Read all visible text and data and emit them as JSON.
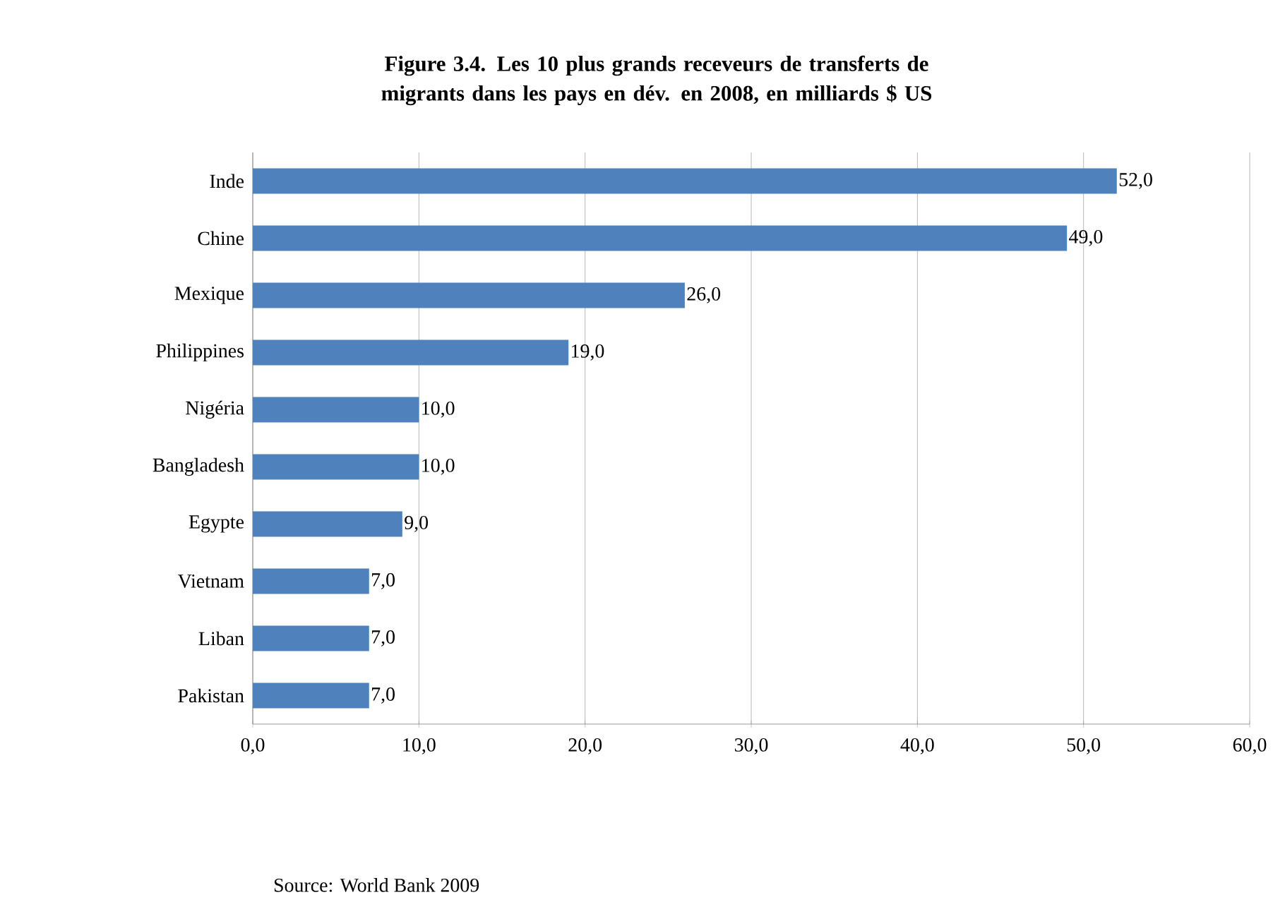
{
  "chart_data": {
    "type": "bar",
    "orientation": "horizontal",
    "title": "Figure 3.4. Les 10 plus grands receveurs de transferts de migrants dans les pays en dév. en 2008, en milliards $ US",
    "categories": [
      "Inde",
      "Chine",
      "Mexique",
      "Philippines",
      "Nigéria",
      "Bangladesh",
      "Egypte",
      "Vietnam",
      "Liban",
      "Pakistan"
    ],
    "values": [
      52,
      49,
      26,
      19,
      10,
      10,
      9,
      7,
      7,
      7
    ],
    "value_labels": [
      "52,0",
      "49,0",
      "26,0",
      "19,0",
      "10,0",
      "10,0",
      "9,0",
      "7,0",
      "7,0",
      "7,0"
    ],
    "color": "#4f81bd",
    "xlim": [
      0,
      60
    ],
    "xticks": [
      {
        "value": 0,
        "label": "0,0"
      },
      {
        "value": 10,
        "label": "10,0"
      },
      {
        "value": 20,
        "label": "20,0"
      },
      {
        "value": 30,
        "label": "30,0"
      },
      {
        "value": 40,
        "label": "40,0"
      },
      {
        "value": 50,
        "label": "50,0"
      },
      {
        "value": 60,
        "label": "60,0"
      }
    ],
    "grid": "x",
    "annotations": [
      "Source: World Bank 2009"
    ]
  }
}
